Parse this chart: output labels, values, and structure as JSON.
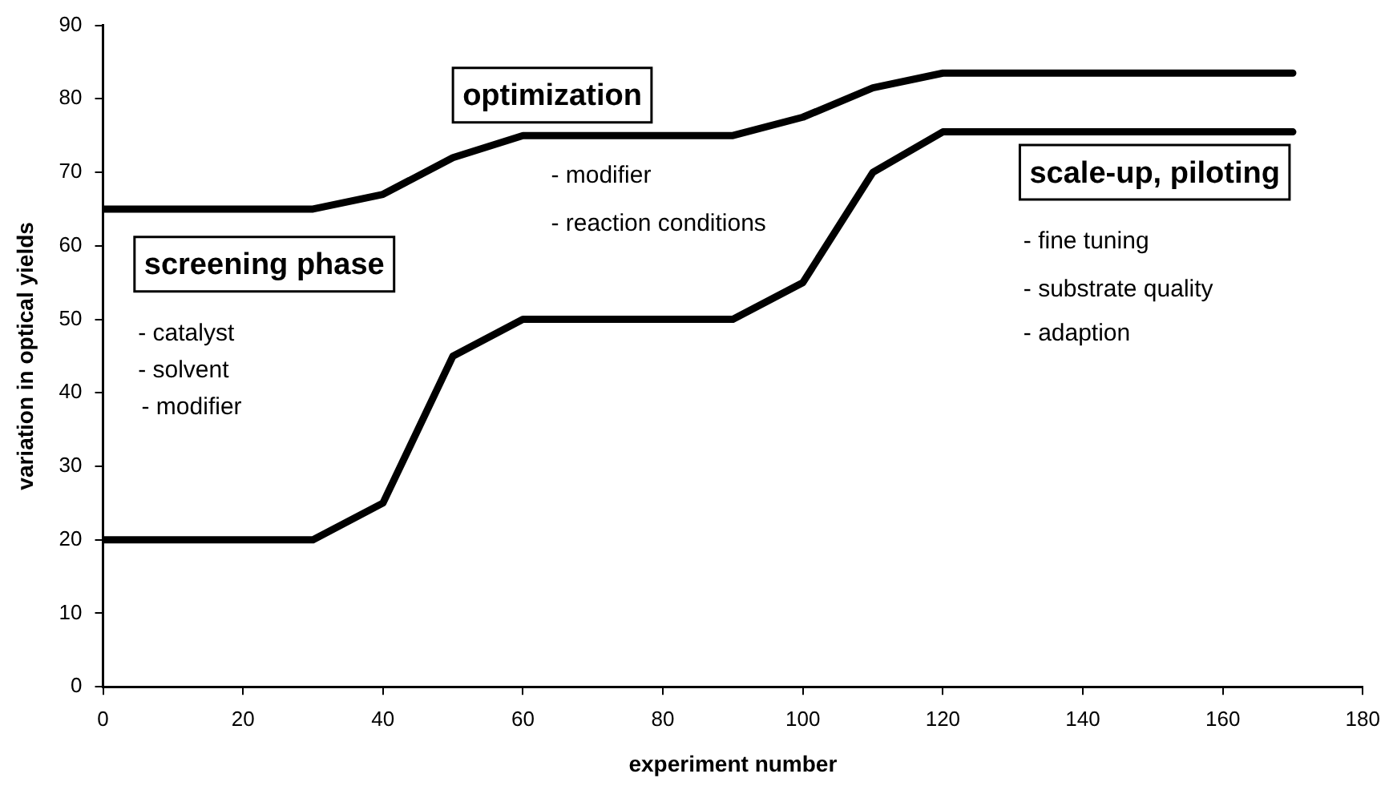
{
  "chart_data": {
    "type": "line",
    "xlabel": "experiment number",
    "ylabel": "variation in optical yields",
    "xlim": [
      0,
      180
    ],
    "xticks": [
      0,
      20,
      40,
      60,
      80,
      100,
      120,
      140,
      160,
      180
    ],
    "ylim": [
      0,
      90
    ],
    "yticks": [
      0,
      10,
      20,
      30,
      40,
      50,
      60,
      70,
      80,
      90
    ],
    "grid": false,
    "legend": false,
    "marker": "none",
    "line_style": "solid",
    "series": [
      {
        "color": "#000000",
        "x": [
          0,
          30,
          40,
          50,
          60,
          90,
          100,
          110,
          120,
          170
        ],
        "values": [
          65,
          65,
          67,
          72,
          75,
          75,
          77.5,
          81.5,
          83.5,
          83.5
        ]
      },
      {
        "color": "#000000",
        "x": [
          0,
          30,
          40,
          50,
          60,
          90,
          100,
          110,
          120,
          170
        ],
        "values": [
          20,
          20,
          25,
          45,
          50,
          50,
          55,
          70,
          75.5,
          75.5
        ]
      }
    ],
    "annotations": [
      "screening phase",
      "- catalyst",
      "- solvent",
      "- modifier",
      "optimization",
      "- modifier",
      "- reaction conditions",
      "scale-up, piloting",
      "- fine tuning",
      "- substrate quality",
      "- adaption"
    ]
  }
}
